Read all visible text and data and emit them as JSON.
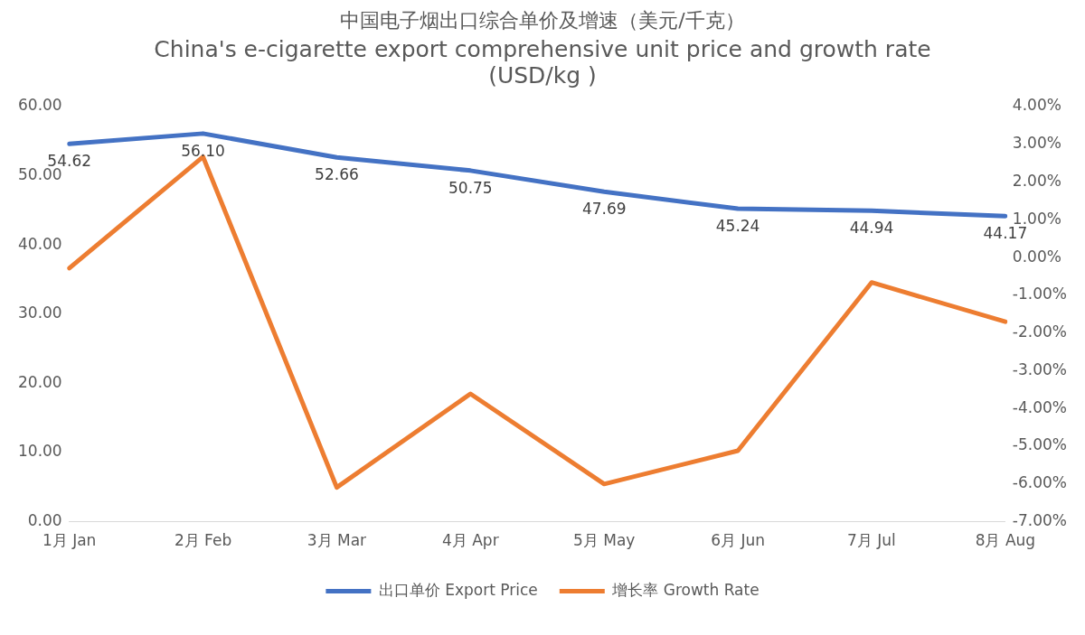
{
  "chart_data": {
    "type": "line",
    "title": "中国电子烟出口综合单价及增速（美元/千克）",
    "subtitle": "China's e-cigarette export comprehensive unit price and growth rate (USD/kg )",
    "categories": [
      "1月 Jan",
      "2月 Feb",
      "3月 Mar",
      "4月 Apr",
      "5月 May",
      "6月 Jun",
      "7月 Jul",
      "8月 Aug"
    ],
    "series": [
      {
        "name": "出口单价 Export Price",
        "color": "#4472c4",
        "values": [
          54.62,
          56.1,
          52.66,
          50.75,
          47.69,
          45.24,
          44.94,
          44.17
        ],
        "value_labels": [
          "54.62",
          "56.10",
          "52.66",
          "50.75",
          "47.69",
          "45.24",
          "44.94",
          "44.17"
        ]
      },
      {
        "name": "增长率 Growth Rate",
        "color": "#ed7d31",
        "axis": "y2",
        "values": [
          -0.28,
          2.67,
          -6.09,
          -3.61,
          -6.0,
          -5.12,
          -0.66,
          -1.7
        ]
      }
    ],
    "ylim": [
      0,
      60
    ],
    "yticks": [
      {
        "value": 0,
        "label": "0.00"
      },
      {
        "value": 10,
        "label": "10.00"
      },
      {
        "value": 20,
        "label": "20.00"
      },
      {
        "value": 30,
        "label": "30.00"
      },
      {
        "value": 40,
        "label": "40.00"
      },
      {
        "value": 50,
        "label": "50.00"
      },
      {
        "value": 60,
        "label": "60.00"
      }
    ],
    "y2lim": [
      -7,
      4
    ],
    "y2ticks": [
      {
        "value": -7,
        "label": "-7.00%"
      },
      {
        "value": -6,
        "label": "-6.00%"
      },
      {
        "value": -5,
        "label": "-5.00%"
      },
      {
        "value": -4,
        "label": "-4.00%"
      },
      {
        "value": -3,
        "label": "-3.00%"
      },
      {
        "value": -2,
        "label": "-2.00%"
      },
      {
        "value": -1,
        "label": "-1.00%"
      },
      {
        "value": 0,
        "label": "0.00%"
      },
      {
        "value": 1,
        "label": "1.00%"
      },
      {
        "value": 2,
        "label": "2.00%"
      },
      {
        "value": 3,
        "label": "3.00%"
      },
      {
        "value": 4,
        "label": "4.00%"
      }
    ],
    "grid": false,
    "legend": "bottom",
    "marker": "none",
    "line_style": "solid"
  }
}
